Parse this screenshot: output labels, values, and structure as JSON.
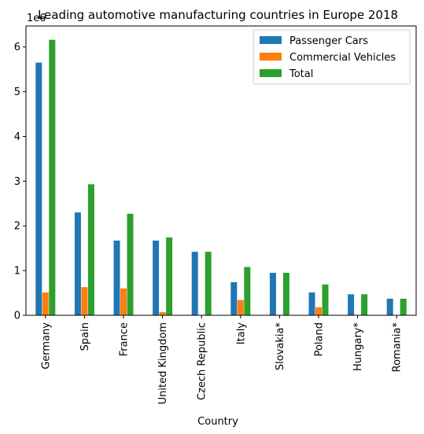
{
  "chart_data": {
    "type": "bar",
    "title": "Leading automotive manufacturing countries in Europe 2018",
    "xlabel": "Country",
    "ylabel": "",
    "y_multiplier": "1e6",
    "ylim": [
      0,
      6.47
    ],
    "yticks": [
      0,
      1,
      2,
      3,
      4,
      5,
      6
    ],
    "grid": false,
    "legend_position": "top-right",
    "categories": [
      "Germany",
      "Spain",
      "France",
      "United Kingdom",
      "Czech Republic",
      "Italy",
      "Slovakia*",
      "Poland",
      "Hungary*",
      "Romania*"
    ],
    "series": [
      {
        "name": "Passenger Cars",
        "color": "#1f77b4",
        "values": [
          5.65,
          2.3,
          1.67,
          1.67,
          1.42,
          0.74,
          0.95,
          0.51,
          0.47,
          0.37
        ]
      },
      {
        "name": "Commercial Vehicles",
        "color": "#ff7f0e",
        "values": [
          0.51,
          0.63,
          0.6,
          0.07,
          0.0,
          0.34,
          0.0,
          0.18,
          0.0,
          0.0
        ]
      },
      {
        "name": "Total",
        "color": "#2ca02c",
        "values": [
          6.16,
          2.93,
          2.27,
          1.74,
          1.42,
          1.08,
          0.95,
          0.69,
          0.47,
          0.37
        ]
      }
    ]
  }
}
